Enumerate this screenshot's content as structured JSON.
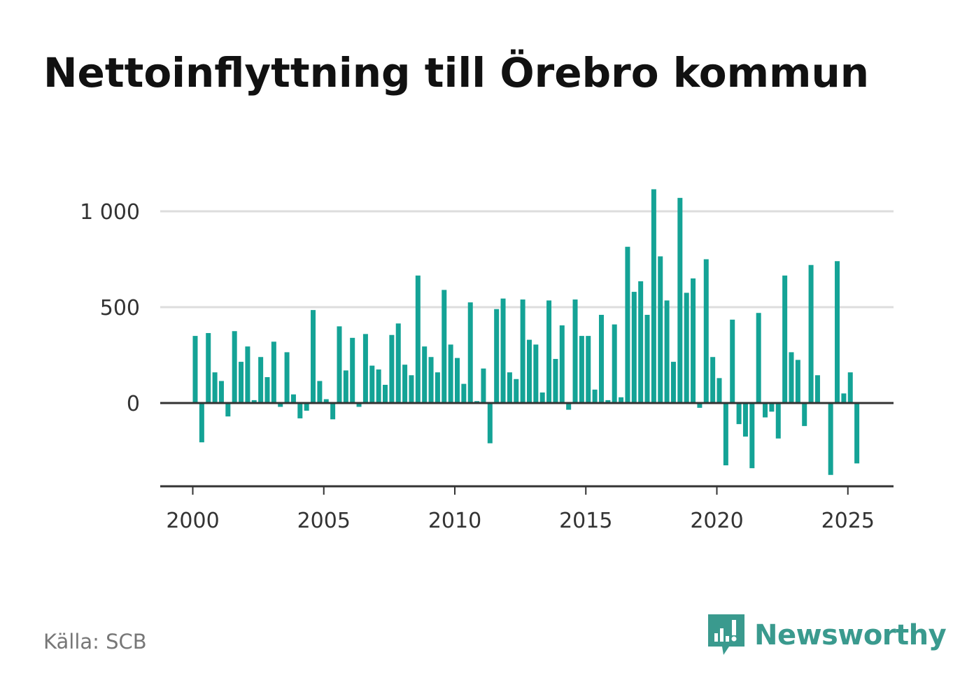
{
  "title": "Nettoinflyttning till Örebro kommun",
  "source": "Källa: SCB",
  "brand": {
    "name": "Newsworthy",
    "icon": "newsworthy-logo-icon"
  },
  "colors": {
    "bar": "#14a396",
    "grid": "#dddddd",
    "axis": "#333333",
    "brand": "#3a9a8e"
  },
  "chart_data": {
    "type": "bar",
    "title": "Nettoinflyttning till Örebro kommun",
    "xlabel": "",
    "ylabel": "",
    "x_ticks": [
      "2000",
      "2005",
      "2010",
      "2015",
      "2020",
      "2025"
    ],
    "y_ticks": [
      {
        "value": 0,
        "label": "0"
      },
      {
        "value": 500,
        "label": "500"
      },
      {
        "value": 1000,
        "label": "1 000"
      }
    ],
    "ylim": [
      -430,
      1150
    ],
    "xlim": [
      1999.3,
      2027.3
    ],
    "grid": true,
    "legend": "none",
    "series": [
      {
        "frequency": "quarterly",
        "start": "2000 Q1",
        "values": [
          350,
          -205,
          365,
          160,
          115,
          -70,
          375,
          215,
          295,
          15,
          240,
          135,
          320,
          -20,
          265,
          45,
          -80,
          -40,
          485,
          115,
          20,
          -85,
          400,
          170,
          340,
          -20,
          360,
          195,
          175,
          95,
          355,
          415,
          200,
          145,
          665,
          295,
          240,
          160,
          590,
          305,
          235,
          100,
          525,
          10,
          180,
          -210,
          490,
          545,
          160,
          125,
          540,
          330,
          305,
          55,
          535,
          230,
          405,
          -35,
          540,
          350,
          350,
          70,
          460,
          15,
          410,
          30,
          815,
          580,
          635,
          460,
          1115,
          765,
          535,
          215,
          1070,
          575,
          650,
          -25,
          750,
          240,
          130,
          -325,
          435,
          -110,
          -175,
          -340,
          470,
          -75,
          -45,
          -185,
          665,
          265,
          225,
          -120,
          720,
          145,
          -5,
          -375,
          740,
          50,
          160,
          -315
        ]
      }
    ]
  }
}
